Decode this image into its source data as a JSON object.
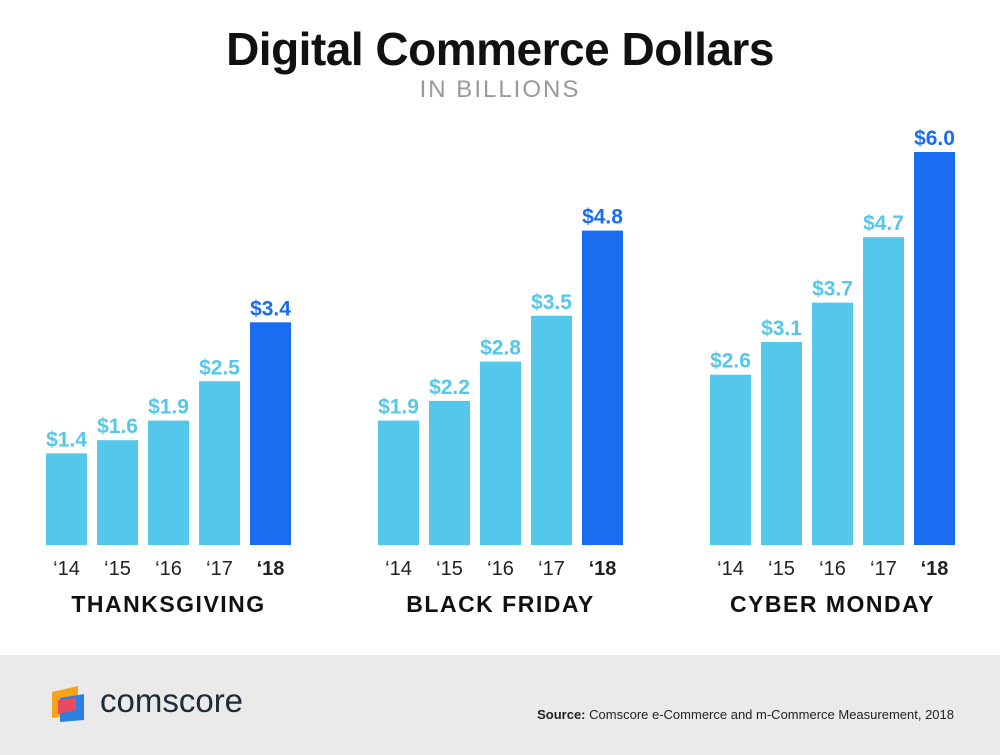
{
  "header": {
    "title": "Digital Commerce Dollars",
    "subtitle": "IN BILLIONS"
  },
  "colors": {
    "past_bar": "#55c7ea",
    "current_bar": "#1a6cf0",
    "label_past": "#55c7ea",
    "label_current": "#1a6cf0",
    "footer_bg": "#eaeaea"
  },
  "chart_data": {
    "type": "bar",
    "title": "Digital Commerce Dollars",
    "subtitle": "IN BILLIONS",
    "ylim": [
      0,
      6.0
    ],
    "grid": false,
    "categories": [
      "‘14",
      "‘15",
      "‘16",
      "‘17",
      "‘18"
    ],
    "groups": [
      {
        "name": "THANKSGIVING",
        "values": [
          1.4,
          1.6,
          1.9,
          2.5,
          3.4
        ],
        "labels": [
          "$1.4",
          "$1.6",
          "$1.9",
          "$2.5",
          "$3.4"
        ]
      },
      {
        "name": "BLACK FRIDAY",
        "values": [
          1.9,
          2.2,
          2.8,
          3.5,
          4.8
        ],
        "labels": [
          "$1.9",
          "$2.2",
          "$2.8",
          "$3.5",
          "$4.8"
        ]
      },
      {
        "name": "CYBER MONDAY",
        "values": [
          2.6,
          3.1,
          3.7,
          4.7,
          6.0
        ],
        "labels": [
          "$2.6",
          "$3.1",
          "$3.7",
          "$4.7",
          "$6.0"
        ]
      }
    ]
  },
  "footer": {
    "brand": "comscore",
    "logo_icon": "comscore-logo-icon",
    "source_label": "Source:",
    "source_text": "Comscore e-Commerce and m-Commerce Measurement, 2018"
  }
}
